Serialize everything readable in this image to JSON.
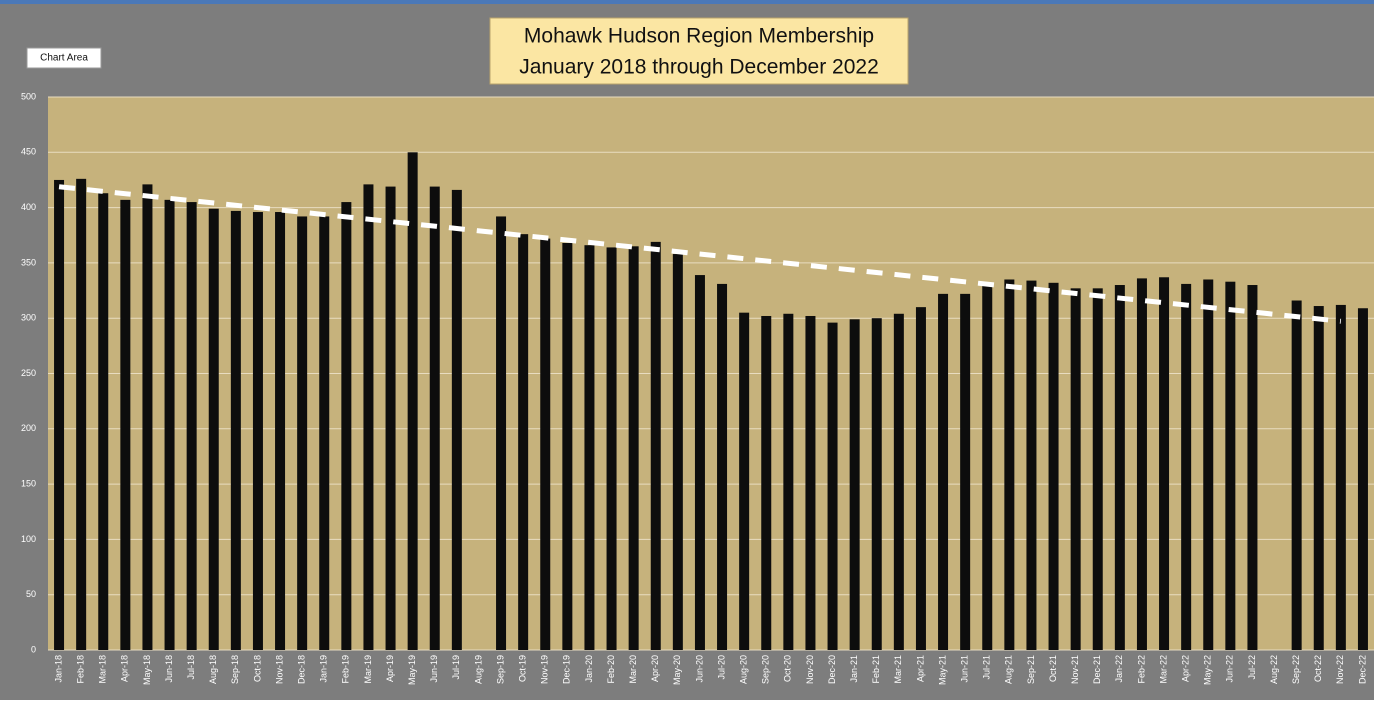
{
  "chart_data": {
    "type": "bar",
    "title": [
      "Mohawk Hudson Region Membership",
      "January 2018 through December 2022"
    ],
    "tooltip": "Chart Area",
    "categories": [
      "Jan-18",
      "Feb-18",
      "Mar-18",
      "Apr-18",
      "May-18",
      "Jun-18",
      "Jul-18",
      "Aug-18",
      "Sep-18",
      "Oct-18",
      "Nov-18",
      "Dec-18",
      "Jan-19",
      "Feb-19",
      "Mar-19",
      "Apr-19",
      "May-19",
      "Jun-19",
      "Jul-19",
      "Aug-19",
      "Sep-19",
      "Oct-19",
      "Nov-19",
      "Dec-19",
      "Jan-20",
      "Feb-20",
      "Mar-20",
      "Apr-20",
      "May-20",
      "Jun-20",
      "Jul-20",
      "Aug-20",
      "Sep-20",
      "Oct-20",
      "Nov-20",
      "Dec-20",
      "Jan-21",
      "Feb-21",
      "Mar-21",
      "Apr-21",
      "May-21",
      "Jun-21",
      "Jul-21",
      "Aug-21",
      "Sep-21",
      "Oct-21",
      "Nov-21",
      "Dec-21",
      "Jan-22",
      "Feb-22",
      "Mar-22",
      "Apr-22",
      "May-22",
      "Jun-22",
      "Jul-22",
      "Aug-22",
      "Sep-22",
      "Oct-22",
      "Nov-22",
      "Dec-22"
    ],
    "values": [
      425,
      426,
      413,
      407,
      421,
      407,
      405,
      399,
      397,
      396,
      396,
      392,
      392,
      405,
      421,
      419,
      450,
      419,
      416,
      null,
      392,
      376,
      372,
      368,
      366,
      364,
      365,
      369,
      358,
      339,
      331,
      305,
      302,
      304,
      302,
      296,
      299,
      300,
      304,
      310,
      322,
      322,
      330,
      335,
      334,
      332,
      327,
      327,
      330,
      336,
      337,
      331,
      335,
      333,
      330,
      null,
      316,
      311,
      312,
      309
    ],
    "color": "#0d0d0d",
    "trendline": true,
    "ylim": [
      0,
      500
    ],
    "yticks": [
      0,
      50,
      100,
      150,
      200,
      250,
      300,
      350,
      400,
      450,
      500
    ],
    "grid": true
  }
}
